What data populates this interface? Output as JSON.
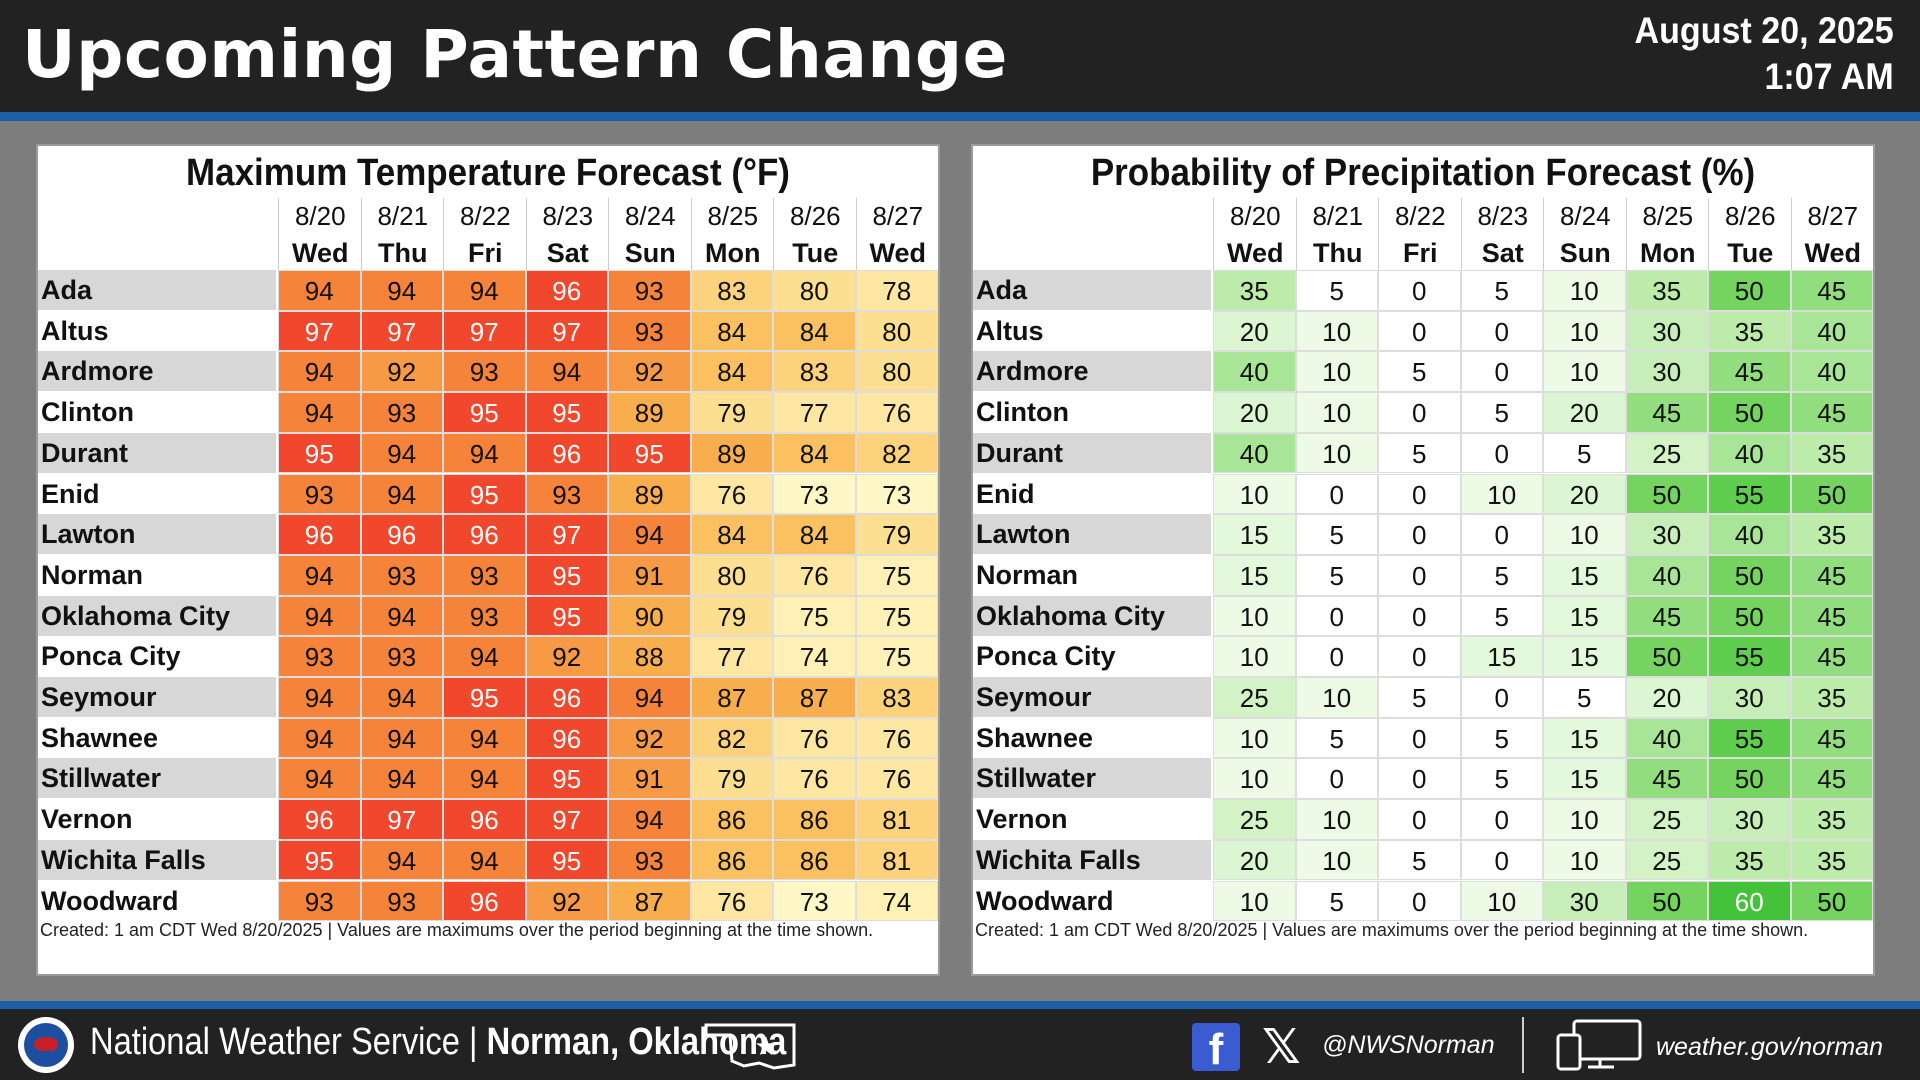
{
  "header": {
    "title": "Upcoming Pattern Change",
    "date": "August 20, 2025",
    "time": "1:07 AM"
  },
  "days": [
    {
      "date": "8/20",
      "weekday": "Wed"
    },
    {
      "date": "8/21",
      "weekday": "Thu"
    },
    {
      "date": "8/22",
      "weekday": "Fri"
    },
    {
      "date": "8/23",
      "weekday": "Sat"
    },
    {
      "date": "8/24",
      "weekday": "Sun"
    },
    {
      "date": "8/25",
      "weekday": "Mon"
    },
    {
      "date": "8/26",
      "weekday": "Tue"
    },
    {
      "date": "8/27",
      "weekday": "Wed"
    }
  ],
  "cities": [
    "Ada",
    "Altus",
    "Ardmore",
    "Clinton",
    "Durant",
    "Enid",
    "Lawton",
    "Norman",
    "Oklahoma City",
    "Ponca City",
    "Seymour",
    "Shawnee",
    "Stillwater",
    "Vernon",
    "Wichita Falls",
    "Woodward"
  ],
  "temperature_table": {
    "title": "Maximum Temperature Forecast (°F)",
    "values": [
      [
        94,
        94,
        94,
        96,
        93,
        83,
        80,
        78
      ],
      [
        97,
        97,
        97,
        97,
        93,
        84,
        84,
        80
      ],
      [
        94,
        92,
        93,
        94,
        92,
        84,
        83,
        80
      ],
      [
        94,
        93,
        95,
        95,
        89,
        79,
        77,
        76
      ],
      [
        95,
        94,
        94,
        96,
        95,
        89,
        84,
        82
      ],
      [
        93,
        94,
        95,
        93,
        89,
        76,
        73,
        73
      ],
      [
        96,
        96,
        96,
        97,
        94,
        84,
        84,
        79
      ],
      [
        94,
        93,
        93,
        95,
        91,
        80,
        76,
        75
      ],
      [
        94,
        94,
        93,
        95,
        90,
        79,
        75,
        75
      ],
      [
        93,
        93,
        94,
        92,
        88,
        77,
        74,
        75
      ],
      [
        94,
        94,
        95,
        96,
        94,
        87,
        87,
        83
      ],
      [
        94,
        94,
        94,
        96,
        92,
        82,
        76,
        76
      ],
      [
        94,
        94,
        94,
        95,
        91,
        79,
        76,
        76
      ],
      [
        96,
        97,
        96,
        97,
        94,
        86,
        86,
        81
      ],
      [
        95,
        94,
        94,
        95,
        93,
        86,
        86,
        81
      ],
      [
        93,
        93,
        96,
        92,
        87,
        76,
        73,
        74
      ]
    ],
    "footnote": "Created: 1 am CDT Wed 8/20/2025  |  Values are maximums over the period beginning at the time shown."
  },
  "precip_table": {
    "title": "Probability of Precipitation Forecast (%)",
    "values": [
      [
        35,
        5,
        0,
        5,
        10,
        35,
        50,
        45
      ],
      [
        20,
        10,
        0,
        0,
        10,
        30,
        35,
        40
      ],
      [
        40,
        10,
        5,
        0,
        10,
        30,
        45,
        40
      ],
      [
        20,
        10,
        0,
        5,
        20,
        45,
        50,
        45
      ],
      [
        40,
        10,
        5,
        0,
        5,
        25,
        40,
        35
      ],
      [
        10,
        0,
        0,
        10,
        20,
        50,
        55,
        50
      ],
      [
        15,
        5,
        0,
        0,
        10,
        30,
        40,
        35
      ],
      [
        15,
        5,
        0,
        5,
        15,
        40,
        50,
        45
      ],
      [
        10,
        0,
        0,
        5,
        15,
        45,
        50,
        45
      ],
      [
        10,
        0,
        0,
        15,
        15,
        50,
        55,
        45
      ],
      [
        25,
        10,
        5,
        0,
        5,
        20,
        30,
        35
      ],
      [
        10,
        5,
        0,
        5,
        15,
        40,
        55,
        45
      ],
      [
        10,
        0,
        0,
        5,
        15,
        45,
        50,
        45
      ],
      [
        25,
        10,
        0,
        0,
        10,
        25,
        30,
        35
      ],
      [
        20,
        10,
        5,
        0,
        10,
        25,
        35,
        35
      ],
      [
        10,
        5,
        0,
        10,
        30,
        50,
        60,
        50
      ]
    ],
    "footnote": "Created: 1 am CDT Wed 8/20/2025  |  Values are maximums over the period beginning at the time shown."
  },
  "footer": {
    "org": "National Weather Service | ",
    "office": "Norman, Oklahoma",
    "handle": "@NWSNorman",
    "website": "weather.gov/norman"
  }
}
